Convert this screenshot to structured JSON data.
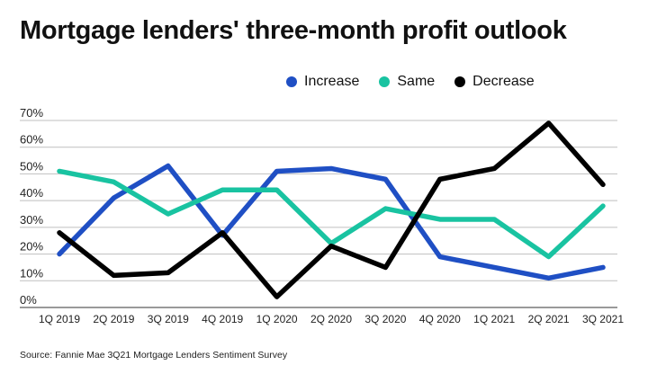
{
  "colors": {
    "increase": "#1f4fc4",
    "same": "#19c3a1",
    "decrease": "#000000",
    "grid": "#bfbfbf",
    "axis": "#333333"
  },
  "chart_data": {
    "type": "line",
    "title": "Mortgage lenders' three-month profit outlook",
    "categories": [
      "1Q 2019",
      "2Q 2019",
      "3Q 2019",
      "4Q 2019",
      "1Q 2020",
      "2Q 2020",
      "3Q 2020",
      "4Q 2020",
      "1Q 2021",
      "2Q 2021",
      "3Q 2021"
    ],
    "yticks": [
      "0%",
      "10%",
      "20%",
      "30%",
      "40%",
      "50%",
      "60%",
      "70%"
    ],
    "ylim": [
      0,
      70
    ],
    "xlabel": "",
    "ylabel": "",
    "legend_position": "top-center",
    "series": [
      {
        "key": "increase",
        "name": "Increase",
        "values": [
          20,
          41,
          53,
          27,
          51,
          52,
          48,
          19,
          15,
          11,
          15
        ]
      },
      {
        "key": "same",
        "name": "Same",
        "values": [
          51,
          47,
          35,
          44,
          44,
          24,
          37,
          33,
          33,
          19,
          38
        ]
      },
      {
        "key": "decrease",
        "name": "Decrease",
        "values": [
          28,
          12,
          13,
          28,
          4,
          23,
          15,
          48,
          52,
          69,
          46
        ]
      }
    ]
  },
  "source": "Source: Fannie Mae 3Q21 Mortgage Lenders Sentiment Survey"
}
